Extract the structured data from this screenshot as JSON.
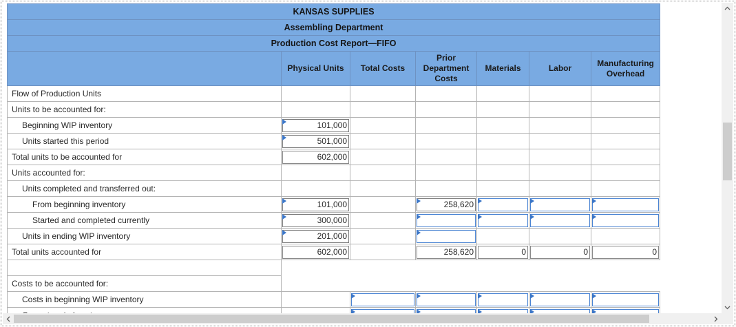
{
  "report": {
    "company": "KANSAS SUPPLIES",
    "department": "Assembling Department",
    "title": "Production Cost Report—FIFO"
  },
  "columns": {
    "physical_units": "Physical Units",
    "total_costs": "Total Costs",
    "prior_department_costs": "Prior Department Costs",
    "materials": "Materials",
    "labor": "Labor",
    "manufacturing_overhead": "Manufacturing Overhead"
  },
  "rows": [
    {
      "label": "Flow of Production Units"
    },
    {
      "label": "Units to be accounted for:"
    },
    {
      "label": "Beginning WIP inventory",
      "physical_units": "101,000"
    },
    {
      "label": "Units started this period",
      "physical_units": "501,000"
    },
    {
      "label": "Total units to be accounted for",
      "physical_units": "602,000"
    },
    {
      "label": "Units accounted for:"
    },
    {
      "label": "Units completed and transferred out:"
    },
    {
      "label": "From beginning inventory",
      "physical_units": "101,000",
      "prior_department_costs": "258,620",
      "materials": "",
      "labor": "",
      "manufacturing_overhead": ""
    },
    {
      "label": "Started and completed currently",
      "physical_units": "300,000",
      "prior_department_costs": "",
      "materials": "",
      "labor": "",
      "manufacturing_overhead": ""
    },
    {
      "label": "Units in ending WIP inventory",
      "physical_units": "201,000",
      "prior_department_costs": ""
    },
    {
      "label": "Total units accounted for",
      "physical_units": "602,000",
      "prior_department_costs": "258,620",
      "materials": "0",
      "labor": "0",
      "manufacturing_overhead": "0"
    },
    {
      "label": ""
    },
    {
      "label": "Costs to be accounted for:"
    },
    {
      "label": "Costs in beginning WIP inventory",
      "total_costs": "",
      "prior_department_costs": "",
      "materials": "",
      "labor": "",
      "manufacturing_overhead": ""
    },
    {
      "label": "Current period costs:",
      "total_costs": "",
      "prior_department_costs": "",
      "materials": "",
      "labor": "",
      "manufacturing_overhead": ""
    }
  ],
  "scrollbars": {
    "vertical": {
      "up_icon": "chevron-up-icon",
      "down_icon": "chevron-down-icon"
    },
    "horizontal": {
      "left_icon": "chevron-left-icon",
      "right_icon": "chevron-right-icon"
    }
  },
  "theme": {
    "header_background": "#79aae2",
    "input_marker": "#3b76c8",
    "empty_input_border": "#4a84d3",
    "grid": "#b3b3b3"
  }
}
